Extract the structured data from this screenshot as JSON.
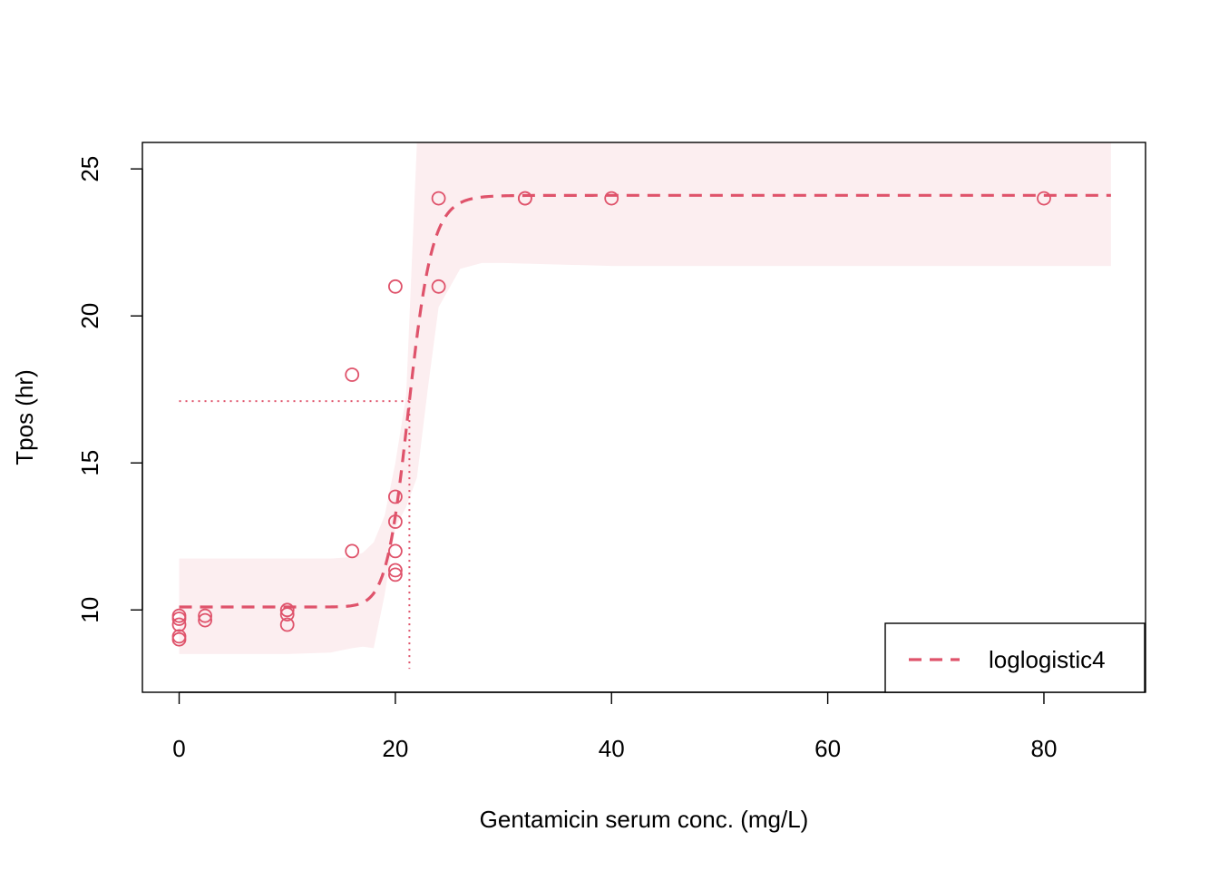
{
  "chart_data": {
    "type": "scatter",
    "title": "",
    "xlabel": "Gentamicin serum conc. (mg/L)",
    "ylabel": "Tpos (hr)",
    "xlim": [
      -3.4,
      89.4
    ],
    "ylim": [
      7.2,
      25.9
    ],
    "xticks": [
      0,
      20,
      40,
      60,
      80
    ],
    "yticks": [
      10,
      15,
      20,
      25
    ],
    "grid": false,
    "legend": {
      "placement": "bottom-right",
      "entries": [
        {
          "label": "loglogistic4",
          "style": "dashed"
        }
      ]
    },
    "colors": {
      "series": "#DF536B",
      "band": "#FCEEF0",
      "axis": "#000000"
    },
    "points": [
      {
        "x": 0,
        "y": 9.0
      },
      {
        "x": 0,
        "y": 9.1
      },
      {
        "x": 0,
        "y": 9.5
      },
      {
        "x": 0,
        "y": 9.7
      },
      {
        "x": 0,
        "y": 9.8
      },
      {
        "x": 2.4,
        "y": 9.65
      },
      {
        "x": 2.4,
        "y": 9.8
      },
      {
        "x": 10,
        "y": 9.5
      },
      {
        "x": 10,
        "y": 9.85
      },
      {
        "x": 10,
        "y": 10.0
      },
      {
        "x": 16,
        "y": 12.0
      },
      {
        "x": 16,
        "y": 18.0
      },
      {
        "x": 20,
        "y": 11.2
      },
      {
        "x": 20,
        "y": 11.35
      },
      {
        "x": 20,
        "y": 12.0
      },
      {
        "x": 20,
        "y": 13.0
      },
      {
        "x": 20,
        "y": 13.85
      },
      {
        "x": 20,
        "y": 21.0
      },
      {
        "x": 24,
        "y": 21.0
      },
      {
        "x": 24,
        "y": 24.0
      },
      {
        "x": 32,
        "y": 24.0
      },
      {
        "x": 32,
        "y": 24.0
      },
      {
        "x": 40,
        "y": 24.0
      },
      {
        "x": 80,
        "y": 24.0
      }
    ],
    "fit": {
      "name": "loglogistic4",
      "lower": 10.1,
      "upper": 24.1,
      "ec50": 21.3,
      "slope": 20,
      "x_range": [
        0,
        86.2
      ]
    },
    "confidence_band": {
      "x": [
        0,
        10,
        14,
        16,
        17,
        18,
        19,
        20,
        21,
        22,
        23,
        24,
        26,
        28,
        30,
        40,
        86.2
      ],
      "lower": [
        8.5,
        8.5,
        8.55,
        8.7,
        8.75,
        8.7,
        10.5,
        12.8,
        13.5,
        14.5,
        17.5,
        20.3,
        21.6,
        21.8,
        21.8,
        21.7,
        21.7
      ],
      "upper": [
        11.75,
        11.75,
        11.75,
        11.8,
        11.95,
        12.3,
        13.2,
        15.0,
        17.3,
        25.9,
        25.9,
        25.9,
        25.9,
        25.9,
        25.9,
        25.9,
        25.9
      ]
    },
    "ed50_marker": {
      "x": 21.3,
      "y": 17.1,
      "y_bottom": 8.0
    }
  }
}
